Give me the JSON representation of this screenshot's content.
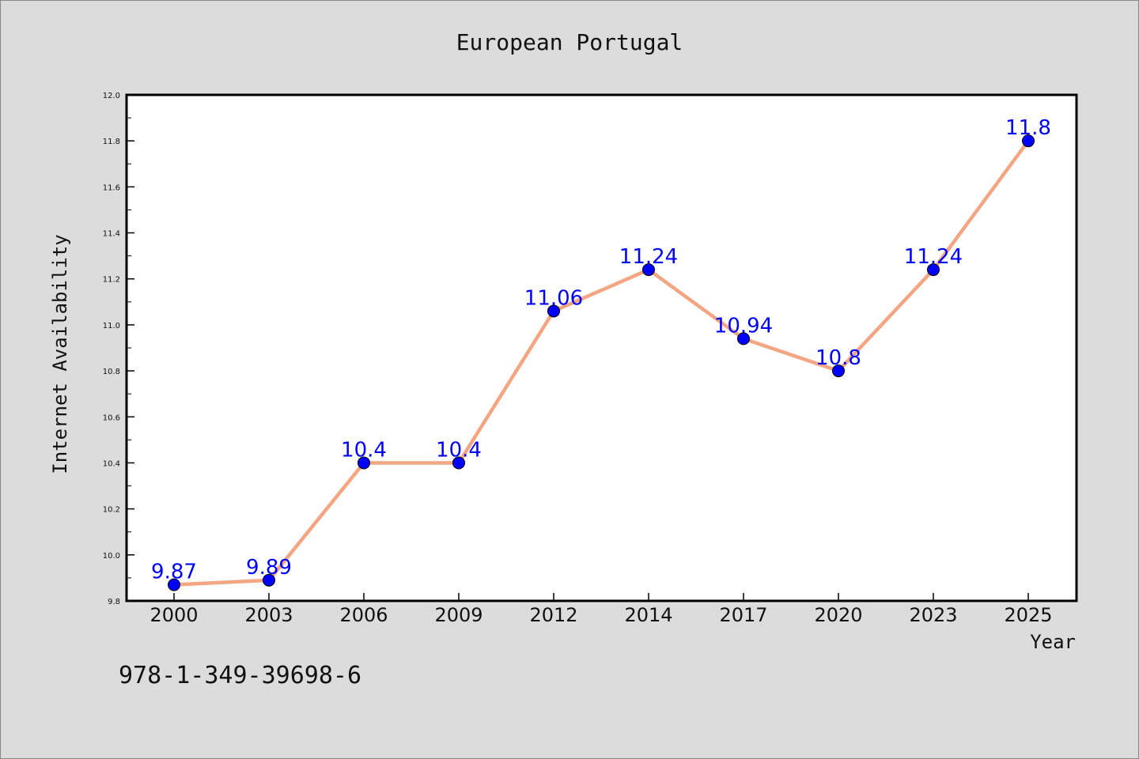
{
  "chart_data": {
    "type": "line",
    "title": "European Portugal",
    "xlabel": "Year",
    "ylabel": "Internet Availability",
    "categories": [
      "2000",
      "2003",
      "2006",
      "2009",
      "2012",
      "2014",
      "2017",
      "2020",
      "2023",
      "2025"
    ],
    "values": [
      9.87,
      9.89,
      10.4,
      10.4,
      11.06,
      11.24,
      10.94,
      10.8,
      11.24,
      11.8
    ],
    "data_labels": [
      "9.87",
      "9.89",
      "10.4",
      "10.4",
      "11.06",
      "11.24",
      "10.94",
      "10.8",
      "11.24",
      "11.8"
    ],
    "ylim": [
      9.8,
      12.0
    ],
    "yticks": [
      "9.8",
      "10.0",
      "10.2",
      "10.4",
      "10.6",
      "10.8",
      "11.0",
      "11.2",
      "11.4",
      "11.6",
      "11.8",
      "12.0"
    ],
    "grid": false,
    "colors": {
      "line": "#f4a582",
      "marker": "#0000ff",
      "label": "#0000ff",
      "background": "#dcdcdc",
      "plot_background": "#ffffff"
    }
  },
  "footer": {
    "isbn": "978-1-349-39698-6"
  }
}
